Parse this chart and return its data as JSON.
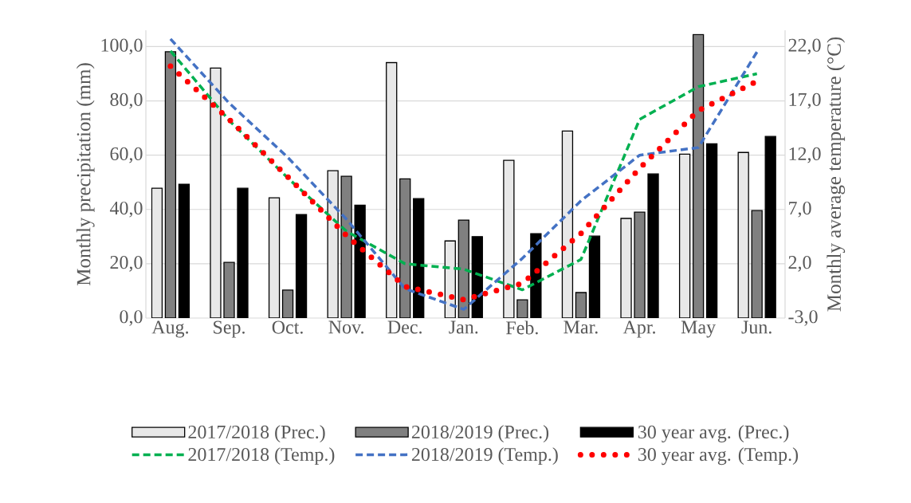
{
  "chart_data": {
    "type": "bar",
    "categories": [
      "Aug.",
      "Sep.",
      "Oct.",
      "Nov.",
      "Dec.",
      "Jan.",
      "Feb.",
      "Mar.",
      "Apr.",
      "May",
      "Jun."
    ],
    "ylabel": "Monthly precipitation (mm)",
    "y2label": "Monthly average temperature (°C)",
    "ylim": [
      0,
      106
    ],
    "y2lim": [
      -3,
      23.5
    ],
    "yticks": [
      {
        "value": 0,
        "label": "0,0"
      },
      {
        "value": 20,
        "label": "20,0"
      },
      {
        "value": 40,
        "label": "40,0"
      },
      {
        "value": 60,
        "label": "60,0"
      },
      {
        "value": 80,
        "label": "80,0"
      },
      {
        "value": 100,
        "label": "100,0"
      }
    ],
    "y2ticks": [
      {
        "value": -3,
        "label": "-3,0"
      },
      {
        "value": 2,
        "label": "2,0"
      },
      {
        "value": 7,
        "label": "7,0"
      },
      {
        "value": 12,
        "label": "12,0"
      },
      {
        "value": 17,
        "label": "17,0"
      },
      {
        "value": 22,
        "label": "22,0"
      }
    ],
    "grid": "y",
    "legend": "bottom",
    "series": [
      {
        "name": "2017/2018 (Prec.)",
        "color": "#e8e8e8",
        "values": [
          47.8,
          92.1,
          44.3,
          54.3,
          94.1,
          28.4,
          58.1,
          68.9,
          36.7,
          60.4,
          61.0
        ]
      },
      {
        "name": "2018/2019 (Prec.)",
        "color": "#808080",
        "values": [
          98.1,
          20.5,
          10.3,
          52.2,
          51.3,
          36.1,
          6.7,
          9.4,
          39.0,
          104.4,
          39.6
        ]
      },
      {
        "name": "30 year avg. (Prec.)",
        "color": "#000000",
        "values": [
          49.3,
          47.8,
          38.1,
          41.6,
          44.0,
          30.0,
          31.1,
          30.2,
          53.1,
          64.2,
          66.9
        ]
      },
      {
        "name": "2017/2018 (Temp.)",
        "type": "line",
        "axis": "y2",
        "line_style": "dashed",
        "color": "#00b050",
        "values": [
          21.6,
          15.2,
          9.9,
          5.0,
          2.0,
          1.5,
          -0.4,
          2.4,
          15.3,
          18.3,
          19.5
        ]
      },
      {
        "name": "2018/2019 (Temp.)",
        "type": "line",
        "axis": "y2",
        "line_style": "dashed",
        "color": "#4472c4",
        "values": [
          22.7,
          16.8,
          11.8,
          6.1,
          -0.3,
          -2.2,
          2.5,
          7.8,
          12.0,
          12.7,
          21.5
        ]
      },
      {
        "name": "30 year avg. (Temp.)",
        "type": "line",
        "axis": "y2",
        "line_style": "dotted",
        "color": "#ff0000",
        "values": [
          20.2,
          15.3,
          10.0,
          4.6,
          -0.1,
          -1.3,
          0.2,
          4.8,
          10.8,
          16.1,
          18.8
        ]
      }
    ]
  }
}
